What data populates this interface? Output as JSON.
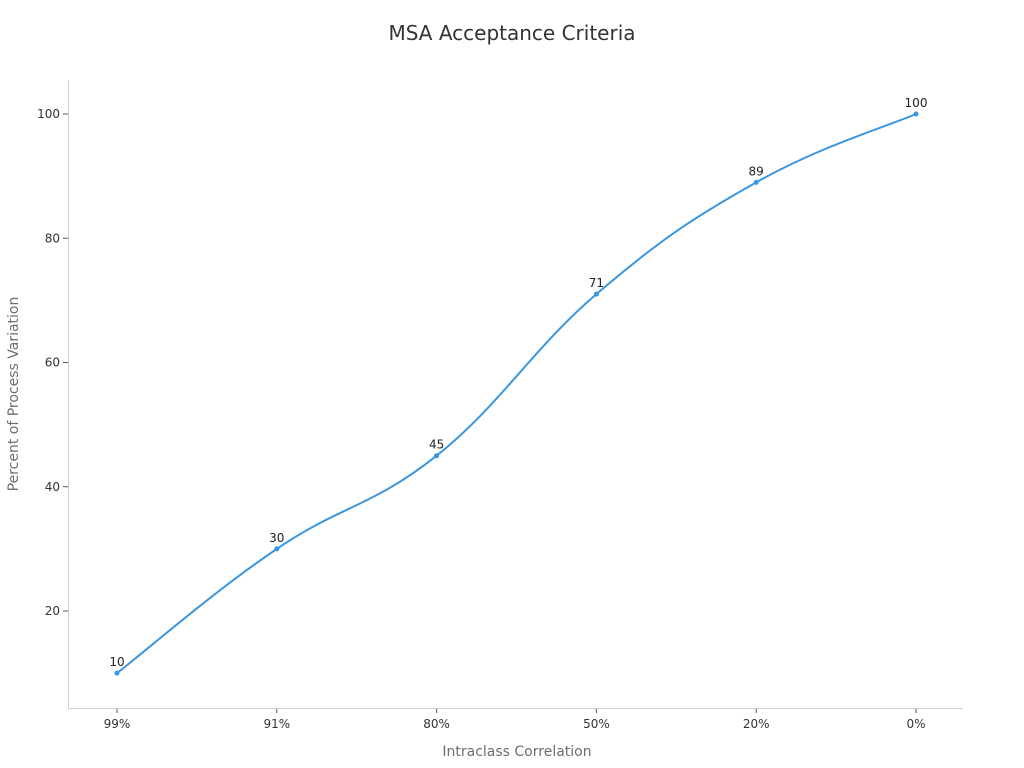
{
  "chart_data": {
    "type": "line",
    "title": "MSA Acceptance Criteria",
    "xlabel": "Intraclass Correlation",
    "ylabel": "Percent of Process Variation",
    "categories": [
      "99%",
      "91%",
      "80%",
      "50%",
      "20%",
      "0%"
    ],
    "series": [
      {
        "name": "Percent of Process Variation",
        "values": [
          10,
          30,
          45,
          71,
          89,
          100
        ],
        "color": "#3b96e0"
      }
    ],
    "yticks": [
      20,
      40,
      60,
      80,
      100
    ],
    "ylim": [
      5.5,
      105.5
    ],
    "grid": false,
    "legend": "none",
    "smooth": true,
    "data_labels": true
  }
}
